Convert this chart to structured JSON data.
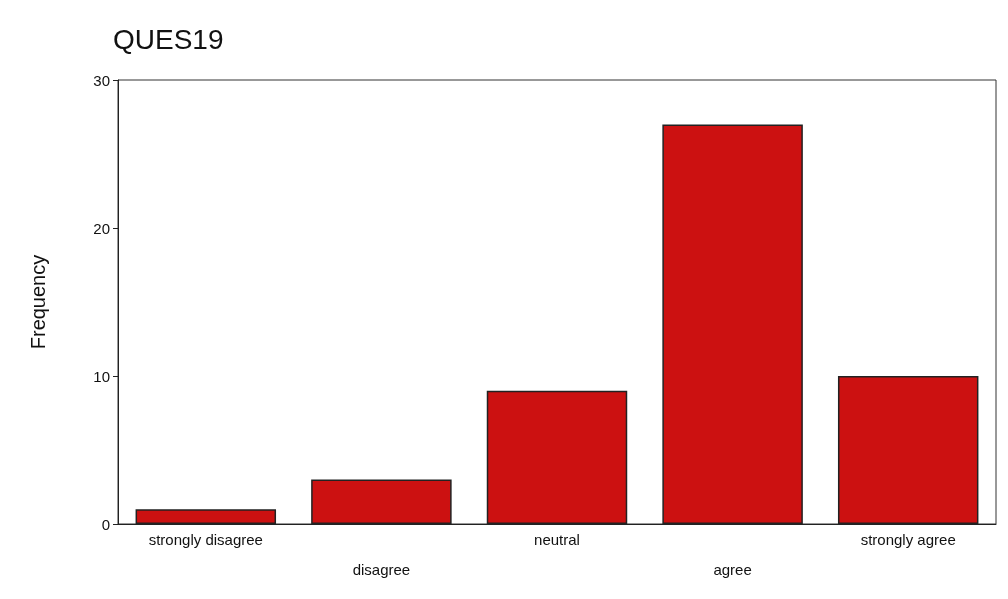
{
  "chart_data": {
    "type": "bar",
    "title": "QUES19",
    "ylabel": "Frequency",
    "categories": [
      "strongly disagree",
      "disagree",
      "neutral",
      "agree",
      "strongly agree"
    ],
    "values": [
      1,
      3,
      9,
      27,
      10
    ],
    "color": "#cc1111",
    "ylim": [
      0,
      30
    ],
    "yticks": [
      0,
      10,
      20,
      30
    ],
    "grid": false
  }
}
